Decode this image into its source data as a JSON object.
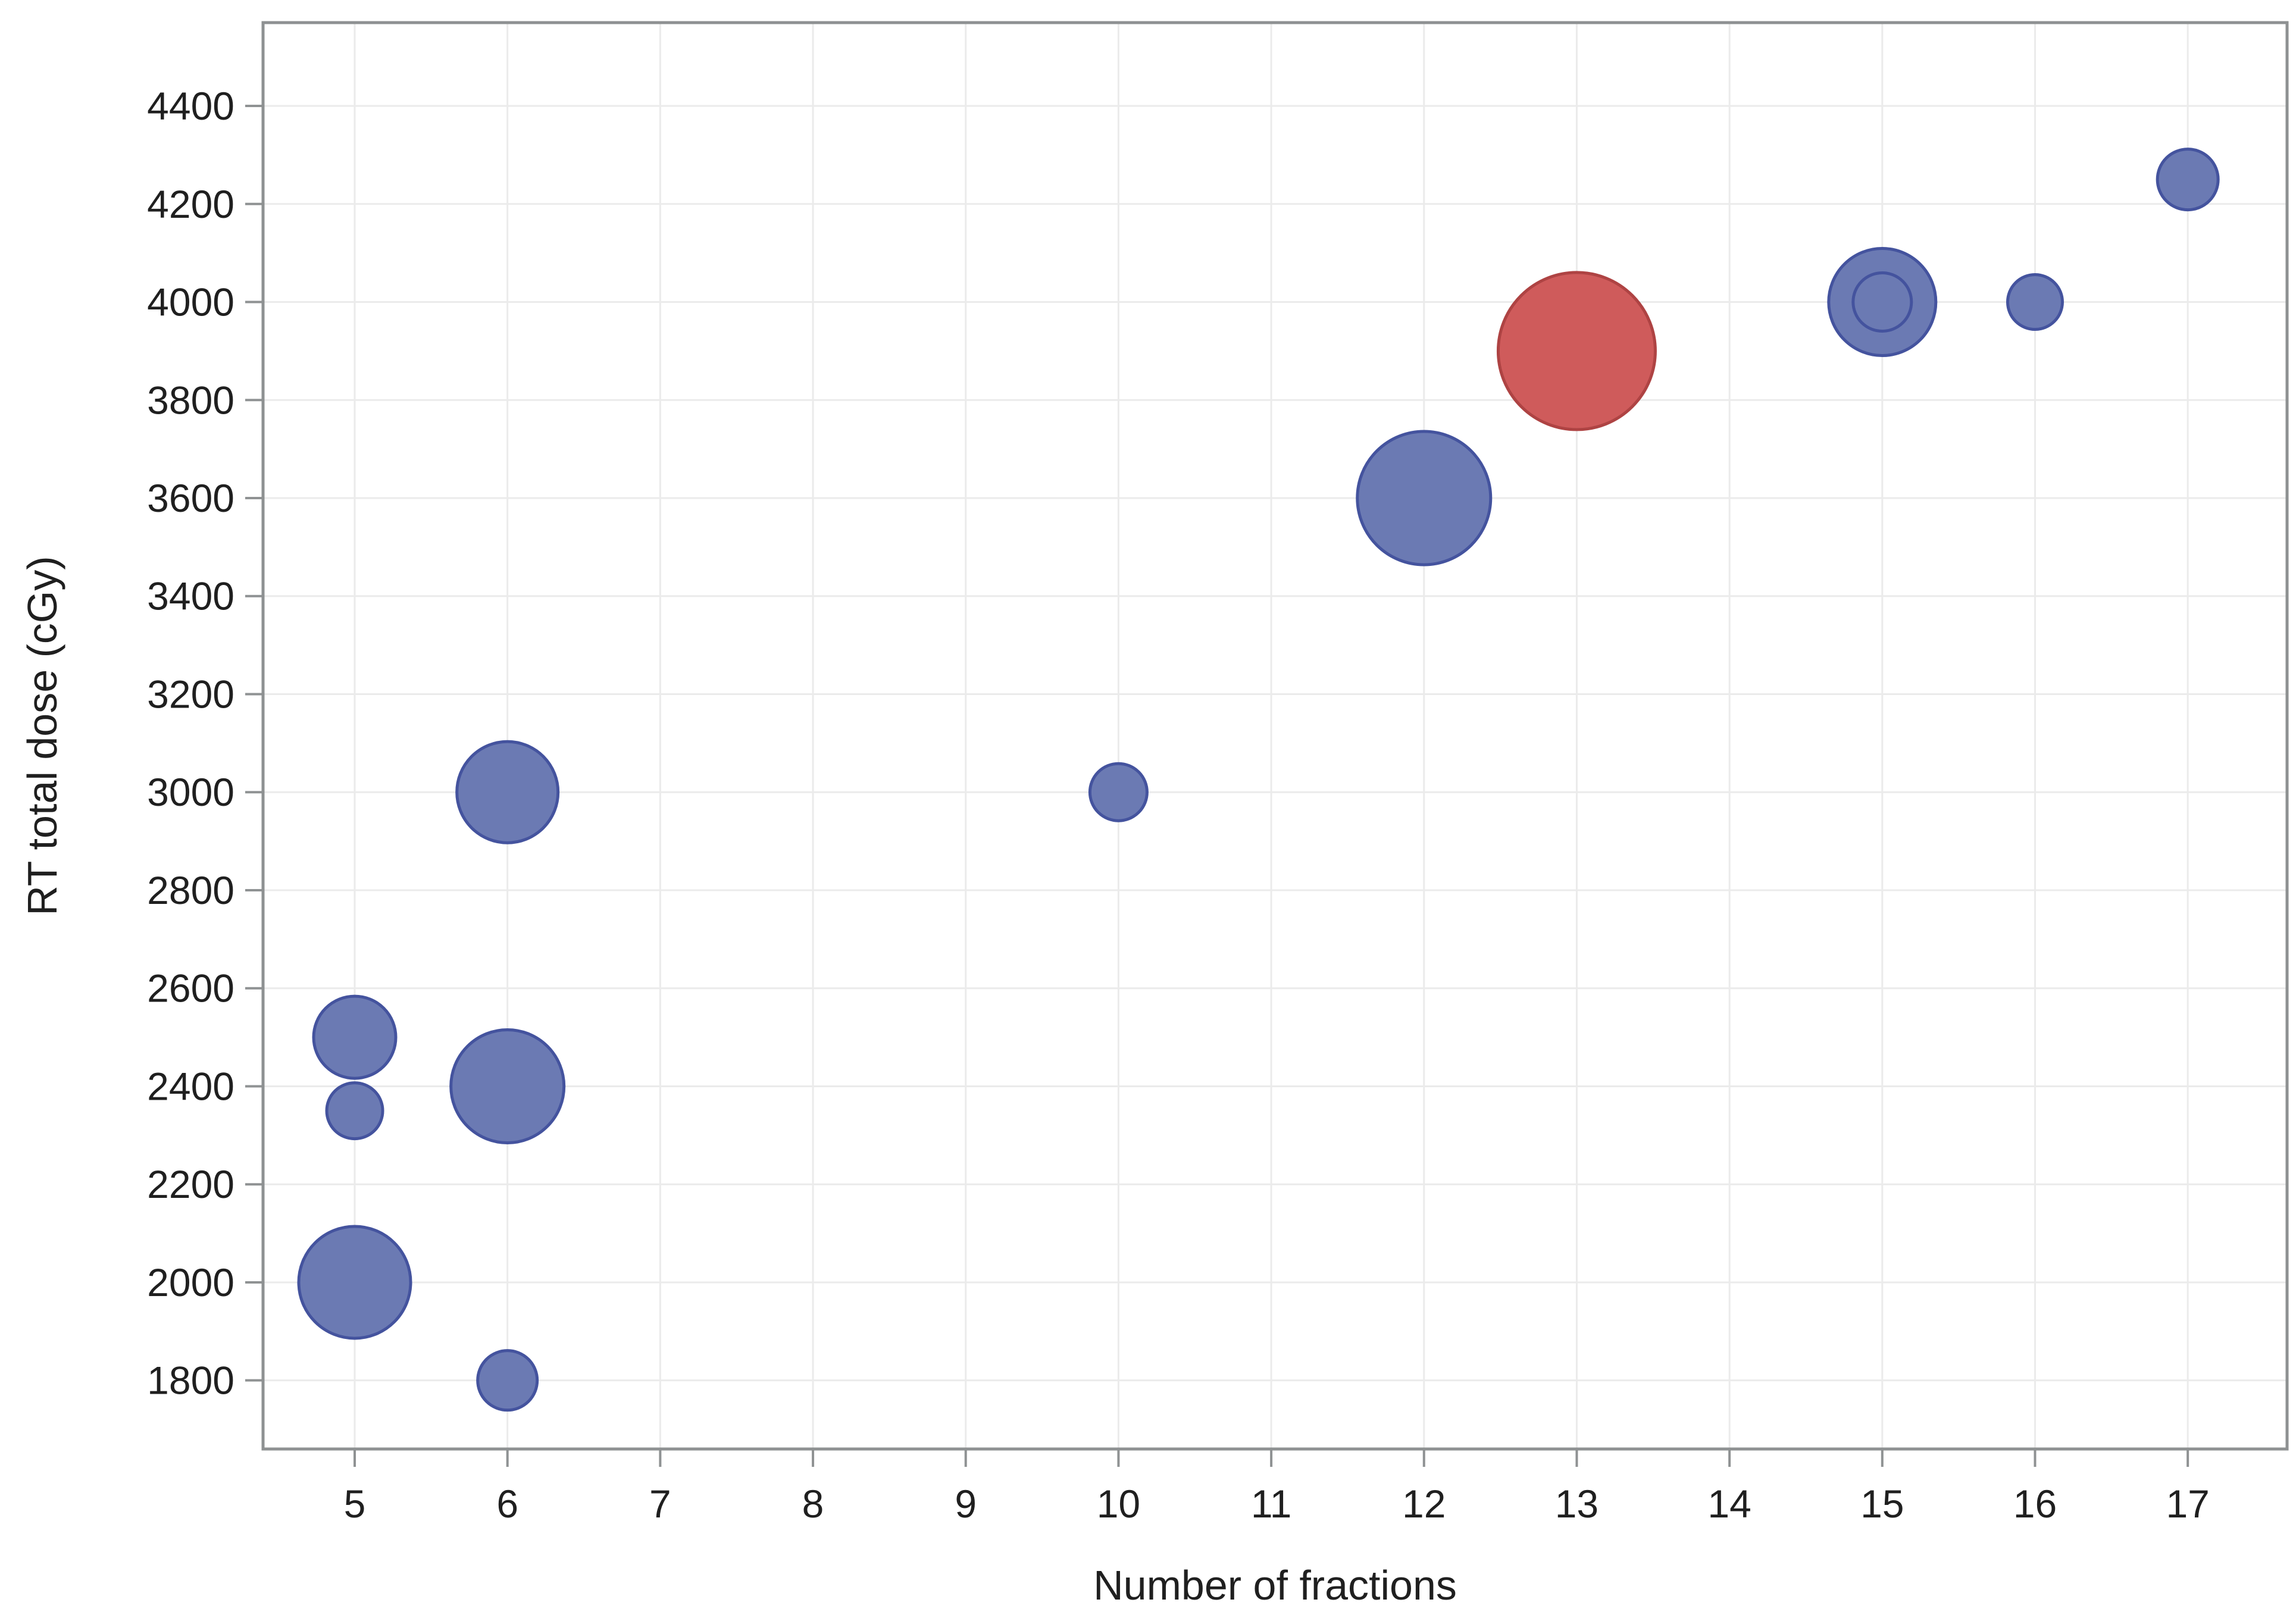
{
  "figure": {
    "background": "#ffffff"
  },
  "style": {
    "plot_background": "#ffffff",
    "border_color": "#8e9192",
    "grid_color": "#ebebeb",
    "tick_color": "#8f9293",
    "text_color": "#1f1f1f"
  },
  "chart_data": {
    "type": "scatter",
    "subtype": "bubble",
    "title": "",
    "xlabel": "Number of fractions",
    "ylabel": "RT total dose (cGy)",
    "xlim": [
      4.4,
      17.65
    ],
    "ylim": [
      1660,
      4570
    ],
    "grid": true,
    "legend": "none",
    "x_ticks": [
      5,
      6,
      7,
      8,
      9,
      10,
      11,
      12,
      13,
      14,
      15,
      16,
      17
    ],
    "y_ticks": [
      1800,
      2000,
      2200,
      2400,
      2600,
      2800,
      3000,
      3200,
      3400,
      3600,
      3800,
      4000,
      4200,
      4400
    ],
    "series": [
      {
        "name": "blue",
        "fill": "#6b7ab3",
        "stroke": "#44539e",
        "points": [
          {
            "x": 5,
            "y": 2500,
            "r": 69
          },
          {
            "x": 5,
            "y": 2350,
            "r": 47
          },
          {
            "x": 5,
            "y": 2000,
            "r": 94
          },
          {
            "x": 6,
            "y": 3000,
            "r": 85
          },
          {
            "x": 6,
            "y": 2400,
            "r": 95
          },
          {
            "x": 6,
            "y": 1800,
            "r": 50
          },
          {
            "x": 10,
            "y": 3000,
            "r": 48
          },
          {
            "x": 12,
            "y": 3600,
            "r": 112
          },
          {
            "x": 15,
            "y": 4000,
            "r": 90
          },
          {
            "x": 15,
            "y": 4000,
            "r": 49
          },
          {
            "x": 16,
            "y": 4000,
            "r": 46
          },
          {
            "x": 17,
            "y": 4250,
            "r": 51
          }
        ]
      },
      {
        "name": "red",
        "fill": "#cf5b5b",
        "stroke": "#ae4343",
        "points": [
          {
            "x": 13,
            "y": 3900,
            "r": 132
          }
        ]
      }
    ]
  }
}
